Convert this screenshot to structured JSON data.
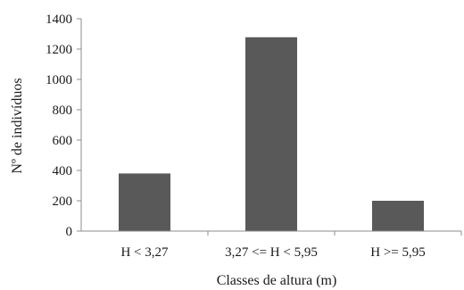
{
  "chart_data": {
    "type": "bar",
    "categories": [
      "H < 3,27",
      "3,27 <= H < 5,95",
      "H >= 5,95"
    ],
    "values": [
      380,
      1278,
      200
    ],
    "xlabel": "Classes de altura (m)",
    "ylabel": "Nº de indivíduos",
    "ylim": [
      0,
      1400
    ],
    "yticks": [
      0,
      200,
      400,
      600,
      800,
      1000,
      1200,
      1400
    ],
    "bar_color": "#595959",
    "grid": false,
    "legend": "none"
  }
}
